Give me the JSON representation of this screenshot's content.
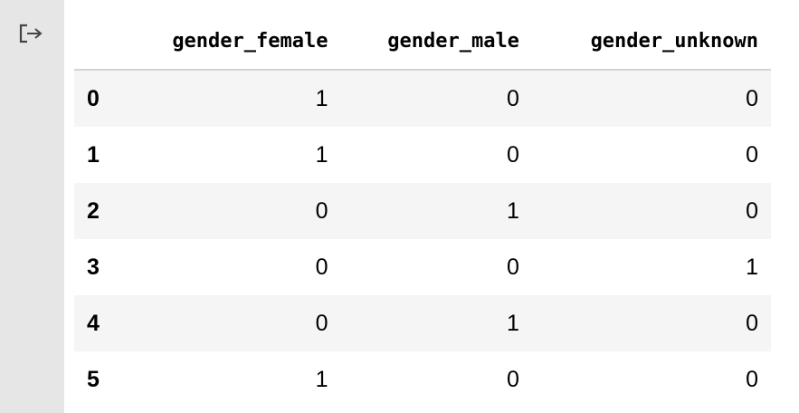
{
  "output": {
    "icon": "output-arrow-icon"
  },
  "table": {
    "columns": [
      "",
      "gender_female",
      "gender_male",
      "gender_unknown"
    ],
    "rows": [
      [
        "0",
        "1",
        "0",
        "0"
      ],
      [
        "1",
        "1",
        "0",
        "0"
      ],
      [
        "2",
        "0",
        "1",
        "0"
      ],
      [
        "3",
        "0",
        "0",
        "1"
      ],
      [
        "4",
        "0",
        "1",
        "0"
      ],
      [
        "5",
        "1",
        "0",
        "0"
      ]
    ]
  }
}
